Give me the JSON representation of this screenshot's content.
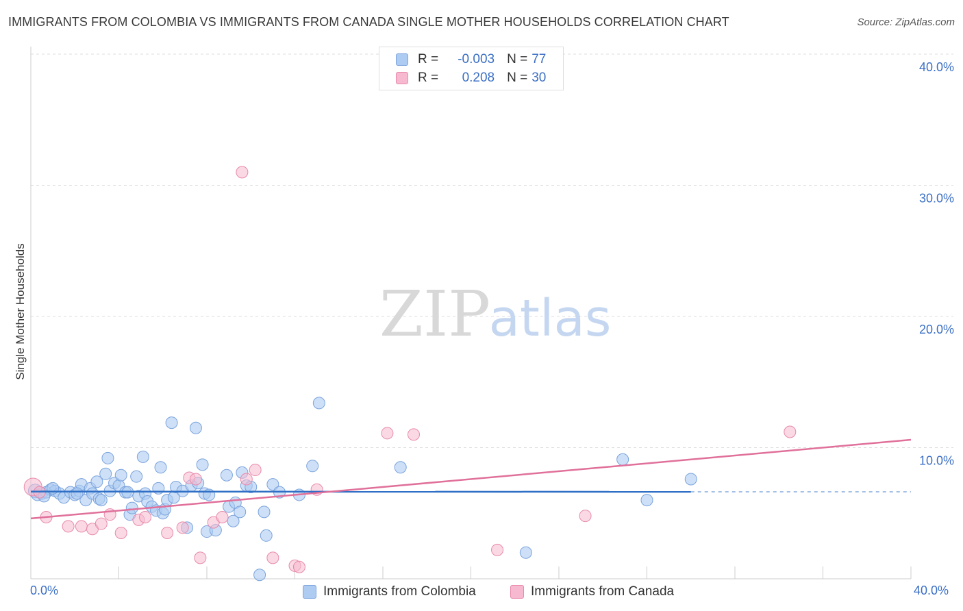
{
  "header": {
    "title": "IMMIGRANTS FROM COLOMBIA VS IMMIGRANTS FROM CANADA SINGLE MOTHER HOUSEHOLDS CORRELATION CHART",
    "source": "Source: ZipAtlas.com"
  },
  "watermark": {
    "zip": "ZIP",
    "atlas": "atlas"
  },
  "legend": {
    "rows": [
      {
        "r_label": "R =",
        "r_value": "-0.003",
        "n_label": "N =",
        "n_value": "77"
      },
      {
        "r_label": "R =",
        "r_value": "0.208",
        "n_label": "N =",
        "n_value": "30"
      }
    ]
  },
  "bottom_legend": {
    "series1": "Immigrants from Colombia",
    "series2": "Immigrants from Canada"
  },
  "colors": {
    "blue_fill": "#aecbf2",
    "blue_stroke": "#7aa3dc",
    "blue_line": "#2f6fc6",
    "pink_fill": "#f6b9cf",
    "pink_stroke": "#e889aa",
    "pink_line": "#e0709a",
    "tick_text": "#3b6fc5"
  },
  "chart_data": {
    "type": "scatter",
    "title": "IMMIGRANTS FROM COLOMBIA VS IMMIGRANTS FROM CANADA SINGLE MOTHER HOUSEHOLDS CORRELATION CHART",
    "xlabel": "",
    "ylabel": "Single Mother Households",
    "xlim": [
      0,
      40
    ],
    "ylim": [
      0,
      40
    ],
    "x_tick_labels": [
      "0.0%",
      "40.0%"
    ],
    "y_ticks": [
      10,
      20,
      30,
      40
    ],
    "y_tick_labels": [
      "10.0%",
      "20.0%",
      "30.0%",
      "40.0%"
    ],
    "grid": true,
    "series": [
      {
        "name": "Immigrants from Colombia",
        "r": -0.003,
        "n": 77,
        "trend": {
          "x": [
            0,
            30.0
          ],
          "y": [
            6.65,
            6.63
          ],
          "dashed_extension_to": 40
        },
        "points": [
          [
            0.2,
            6.7
          ],
          [
            0.3,
            6.4
          ],
          [
            0.5,
            6.5
          ],
          [
            0.7,
            6.6
          ],
          [
            0.9,
            6.8
          ],
          [
            1.1,
            6.7
          ],
          [
            1.3,
            6.5
          ],
          [
            1.5,
            6.2
          ],
          [
            1.8,
            6.6
          ],
          [
            2.0,
            6.4
          ],
          [
            2.2,
            6.7
          ],
          [
            2.3,
            7.2
          ],
          [
            2.5,
            6.0
          ],
          [
            2.7,
            6.9
          ],
          [
            2.8,
            6.5
          ],
          [
            3.0,
            7.4
          ],
          [
            3.1,
            6.1
          ],
          [
            3.2,
            6.0
          ],
          [
            3.4,
            8.0
          ],
          [
            3.5,
            9.2
          ],
          [
            3.6,
            6.7
          ],
          [
            3.8,
            7.3
          ],
          [
            4.0,
            7.1
          ],
          [
            4.1,
            7.9
          ],
          [
            4.3,
            6.6
          ],
          [
            4.4,
            6.6
          ],
          [
            4.5,
            4.9
          ],
          [
            4.6,
            5.4
          ],
          [
            4.8,
            7.8
          ],
          [
            4.9,
            6.3
          ],
          [
            5.1,
            9.3
          ],
          [
            5.2,
            6.5
          ],
          [
            5.3,
            5.9
          ],
          [
            5.5,
            5.5
          ],
          [
            5.7,
            5.2
          ],
          [
            5.8,
            6.9
          ],
          [
            5.9,
            8.5
          ],
          [
            6.0,
            5.0
          ],
          [
            6.1,
            5.3
          ],
          [
            6.2,
            6.0
          ],
          [
            6.4,
            11.9
          ],
          [
            6.5,
            6.2
          ],
          [
            6.6,
            7.0
          ],
          [
            6.9,
            6.7
          ],
          [
            7.1,
            3.9
          ],
          [
            7.3,
            7.1
          ],
          [
            7.5,
            11.5
          ],
          [
            7.6,
            7.3
          ],
          [
            7.8,
            8.7
          ],
          [
            7.9,
            6.5
          ],
          [
            8.0,
            3.6
          ],
          [
            8.1,
            6.4
          ],
          [
            8.4,
            3.7
          ],
          [
            8.9,
            7.9
          ],
          [
            9.0,
            5.5
          ],
          [
            9.2,
            4.4
          ],
          [
            9.3,
            5.8
          ],
          [
            9.5,
            5.1
          ],
          [
            9.6,
            8.1
          ],
          [
            9.8,
            7.1
          ],
          [
            10.0,
            7.0
          ],
          [
            10.4,
            0.3
          ],
          [
            10.6,
            5.1
          ],
          [
            10.7,
            3.3
          ],
          [
            11.0,
            7.2
          ],
          [
            11.3,
            6.6
          ],
          [
            12.2,
            6.4
          ],
          [
            12.8,
            8.6
          ],
          [
            13.1,
            13.4
          ],
          [
            16.8,
            8.5
          ],
          [
            22.5,
            2.0
          ],
          [
            26.9,
            9.1
          ],
          [
            28.0,
            6.0
          ],
          [
            30.0,
            7.6
          ],
          [
            2.1,
            6.5
          ],
          [
            1.0,
            6.9
          ],
          [
            0.6,
            6.3
          ]
        ]
      },
      {
        "name": "Immigrants from Canada",
        "r": 0.208,
        "n": 30,
        "trend": {
          "x": [
            0,
            40
          ],
          "y": [
            4.6,
            10.6
          ]
        },
        "points": [
          [
            0.1,
            7.0
          ],
          [
            0.7,
            4.7
          ],
          [
            1.7,
            4.0
          ],
          [
            2.3,
            4.0
          ],
          [
            2.8,
            3.8
          ],
          [
            3.2,
            4.2
          ],
          [
            3.6,
            4.9
          ],
          [
            4.1,
            3.5
          ],
          [
            4.9,
            4.5
          ],
          [
            5.2,
            4.7
          ],
          [
            6.2,
            3.5
          ],
          [
            6.9,
            3.9
          ],
          [
            7.2,
            7.7
          ],
          [
            7.5,
            7.6
          ],
          [
            7.7,
            1.6
          ],
          [
            8.3,
            4.3
          ],
          [
            8.7,
            4.7
          ],
          [
            9.6,
            31.0
          ],
          [
            9.8,
            7.6
          ],
          [
            10.2,
            8.3
          ],
          [
            11.0,
            1.6
          ],
          [
            12.0,
            1.0
          ],
          [
            12.2,
            0.9
          ],
          [
            13.0,
            6.8
          ],
          [
            16.2,
            11.1
          ],
          [
            17.4,
            11.0
          ],
          [
            21.2,
            2.2
          ],
          [
            25.2,
            4.8
          ],
          [
            34.5,
            11.2
          ],
          [
            0.4,
            6.6
          ]
        ]
      }
    ]
  }
}
